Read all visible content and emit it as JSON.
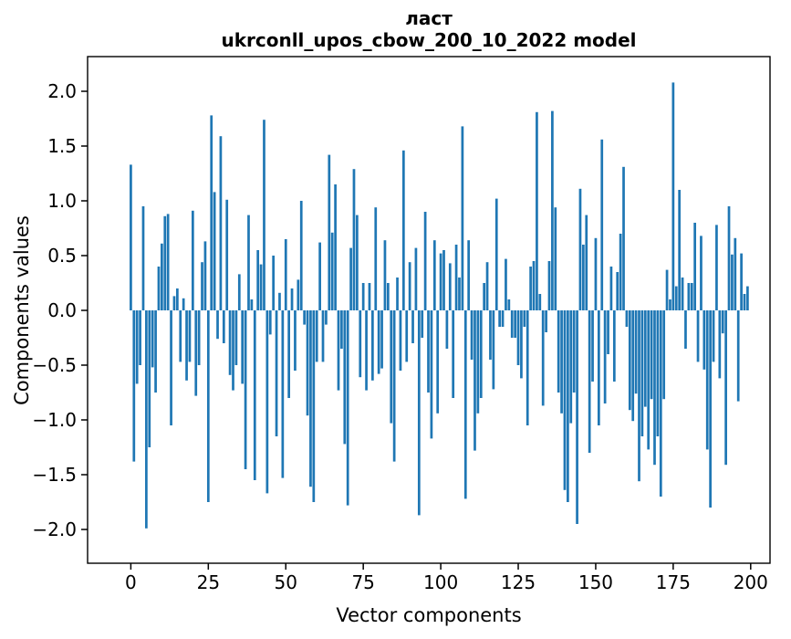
{
  "chart_data": {
    "type": "bar",
    "title": "ласт",
    "subtitle": "ukrconll_upos_cbow_200_10_2022 model",
    "xlabel": "Vector components",
    "ylabel": "Components values",
    "bar_color": "#1f77b4",
    "grid": false,
    "legend": null,
    "x_is_index": true,
    "n_components": 200,
    "xlim": [
      -14,
      206
    ],
    "ylim": [
      -2.31,
      2.32
    ],
    "x_tick_values": [
      0,
      25,
      50,
      75,
      100,
      125,
      150,
      175,
      200
    ],
    "x_tick_labels": [
      "0",
      "25",
      "50",
      "75",
      "100",
      "125",
      "150",
      "175",
      "200"
    ],
    "y_tick_values": [
      2.0,
      1.5,
      1.0,
      0.5,
      0.0,
      -0.5,
      -1.0,
      -1.5,
      -2.0
    ],
    "y_tick_labels": [
      "2.0",
      "1.5",
      "1.0",
      "0.5",
      "0.0",
      "−0.5",
      "−1.0",
      "−1.5",
      "−2.0"
    ],
    "values": [
      1.33,
      -1.38,
      -0.67,
      -0.5,
      0.95,
      -1.99,
      -1.25,
      -0.52,
      -0.75,
      0.4,
      0.61,
      0.86,
      0.88,
      -1.05,
      0.13,
      0.2,
      -0.47,
      0.11,
      -0.64,
      -0.47,
      0.91,
      -0.78,
      -0.5,
      0.44,
      0.63,
      -1.75,
      1.78,
      1.08,
      -0.26,
      1.59,
      -0.3,
      1.01,
      -0.59,
      -0.73,
      -0.5,
      0.33,
      -0.67,
      -1.45,
      0.87,
      0.1,
      -1.55,
      0.55,
      0.42,
      1.74,
      -1.67,
      -0.22,
      0.5,
      -1.15,
      0.16,
      -1.53,
      0.65,
      -0.8,
      0.2,
      -0.55,
      0.28,
      1.0,
      -0.13,
      -0.96,
      -1.61,
      -1.75,
      -0.47,
      0.62,
      -0.47,
      -0.13,
      1.42,
      0.71,
      1.15,
      -0.73,
      -0.35,
      -1.22,
      -1.78,
      0.57,
      1.29,
      0.87,
      -0.61,
      0.25,
      -0.73,
      0.25,
      -0.64,
      0.94,
      -0.58,
      -0.53,
      0.64,
      0.25,
      -1.03,
      -1.38,
      0.3,
      -0.55,
      1.46,
      -0.47,
      0.44,
      -0.3,
      0.57,
      -1.87,
      -0.25,
      0.9,
      -0.75,
      -1.17,
      0.64,
      -0.94,
      0.52,
      0.55,
      -0.35,
      0.43,
      -0.8,
      0.6,
      0.3,
      1.68,
      -1.72,
      0.64,
      -0.45,
      -1.28,
      -0.94,
      -0.8,
      0.25,
      0.44,
      -0.45,
      -0.72,
      1.02,
      -0.15,
      -0.15,
      0.47,
      0.1,
      -0.25,
      -0.25,
      -0.5,
      -0.62,
      -0.15,
      -1.05,
      0.4,
      0.45,
      1.81,
      0.15,
      -0.87,
      -0.2,
      0.45,
      1.82,
      0.94,
      -0.75,
      -0.94,
      -1.64,
      -1.75,
      -1.03,
      -0.75,
      -1.95,
      1.11,
      0.6,
      0.87,
      -1.3,
      -0.65,
      0.66,
      -1.05,
      1.56,
      -0.85,
      -0.4,
      0.4,
      -0.65,
      0.35,
      0.7,
      1.31,
      -0.15,
      -0.91,
      -1.01,
      -0.76,
      -1.56,
      -1.15,
      -0.88,
      -1.27,
      -0.81,
      -1.41,
      -1.15,
      -1.7,
      -0.81,
      0.37,
      0.1,
      2.08,
      0.22,
      1.1,
      0.3,
      -0.35,
      0.25,
      0.25,
      0.8,
      -0.47,
      0.68,
      -0.54,
      -1.27,
      -1.8,
      -0.47,
      0.78,
      -0.62,
      -0.21,
      -1.41,
      0.95,
      0.51,
      0.66,
      -0.83,
      0.52,
      0.15,
      0.22
    ]
  }
}
